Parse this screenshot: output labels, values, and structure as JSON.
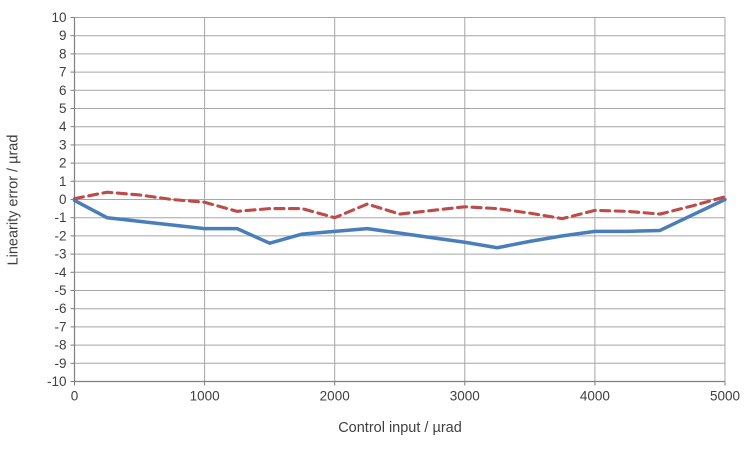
{
  "chart_data": {
    "type": "line",
    "title": "",
    "xlabel": "Control input / µrad",
    "ylabel": "Linearity error / µrad",
    "xlim": [
      0,
      5000
    ],
    "ylim": [
      -10,
      10
    ],
    "x_ticks": [
      0,
      1000,
      2000,
      3000,
      4000,
      5000
    ],
    "y_ticks": [
      -10,
      -9,
      -8,
      -7,
      -6,
      -5,
      -4,
      -3,
      -2,
      -1,
      0,
      1,
      2,
      3,
      4,
      5,
      6,
      7,
      8,
      9,
      10
    ],
    "grid": {
      "horizontal_step": 1,
      "vertical_step": 1000,
      "visible": true
    },
    "legend": "none",
    "x": [
      0,
      250,
      500,
      750,
      1000,
      1250,
      1500,
      1750,
      2000,
      2250,
      2500,
      2750,
      3000,
      3250,
      3500,
      3750,
      4000,
      4250,
      4500,
      4750,
      5000
    ],
    "series": [
      {
        "name": "solid-blue-series",
        "color": "#4A7EBB",
        "line_style": "solid",
        "values": [
          -0.05,
          -1.0,
          -1.2,
          -1.4,
          -1.6,
          -1.6,
          -2.4,
          -1.9,
          -1.75,
          -1.6,
          -1.85,
          -2.1,
          -2.35,
          -2.65,
          -2.3,
          -2.0,
          -1.75,
          -1.75,
          -1.7,
          -0.85,
          0.0
        ]
      },
      {
        "name": "dashed-red-series",
        "color": "#BE4B48",
        "line_style": "dashed",
        "values": [
          0.05,
          0.4,
          0.25,
          0.0,
          -0.15,
          -0.65,
          -0.5,
          -0.5,
          -1.0,
          -0.25,
          -0.8,
          -0.6,
          -0.4,
          -0.5,
          -0.75,
          -1.05,
          -0.6,
          -0.65,
          -0.8,
          -0.35,
          0.15
        ]
      }
    ]
  },
  "styles": {
    "grid_color": "#A6A6A6",
    "axis_color": "#808080",
    "tick_color": "#808080",
    "text_color": "#404040",
    "background": "#FFFFFF"
  }
}
